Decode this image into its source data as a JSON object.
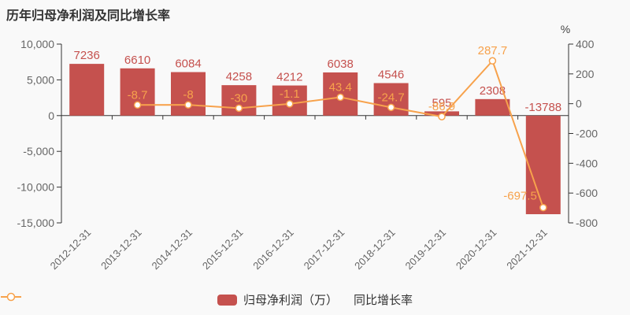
{
  "title": "历年归母净利润及同比增长率",
  "legend": {
    "bar_label": "归母净利润（万）",
    "line_label": "同比增长率"
  },
  "colors": {
    "bar": "#c5514e",
    "line": "#f7a24c",
    "background": "#f9f9f9",
    "axis_line": "#333333",
    "tick_label": "#666666",
    "unit_label": "#444444",
    "title_text": "#333333",
    "marker_fill": "#ffffff"
  },
  "chart_data": {
    "type": "bar+line",
    "title": "历年归母净利润及同比增长率",
    "legend_position": "bottom-center",
    "grid": false,
    "categories": [
      "2012-12-31",
      "2013-12-31",
      "2014-12-31",
      "2015-12-31",
      "2016-12-31",
      "2017-12-31",
      "2018-12-31",
      "2019-12-31",
      "2020-12-31",
      "2021-12-31"
    ],
    "series": [
      {
        "name": "归母净利润（万）",
        "type": "bar",
        "y_axis": "left",
        "color": "#c5514e",
        "values": [
          7236,
          6610,
          6084,
          4258,
          4212,
          6038,
          4546,
          595,
          2308,
          -13788
        ],
        "labels": [
          "7236",
          "6610",
          "6084",
          "4258",
          "4212",
          "6038",
          "4546",
          "595",
          "2308",
          "-13788"
        ]
      },
      {
        "name": "同比增长率",
        "type": "line",
        "y_axis": "right",
        "color": "#f7a24c",
        "values": [
          null,
          -8.7,
          -8,
          -30,
          -1.1,
          43.4,
          -24.7,
          -86.9,
          287.7,
          -697.5
        ],
        "labels": [
          null,
          "-8.7",
          "-8",
          "-30",
          "-1.1",
          "43.4",
          "-24.7",
          "-86.9",
          "287.7",
          "-697.5"
        ]
      }
    ],
    "left_axis": {
      "min": -15000,
      "max": 10000,
      "tick_values": [
        10000,
        5000,
        0,
        -5000,
        -10000,
        -15000
      ],
      "tick_labels": [
        "10,000",
        "5,000",
        "0",
        "-5,000",
        "-10,000",
        "-15,000"
      ]
    },
    "right_axis": {
      "min": -800,
      "max": 400,
      "unit": "%",
      "tick_values": [
        400,
        200,
        0,
        -200,
        -400,
        -600,
        -800
      ],
      "tick_labels": [
        "400",
        "200",
        "0",
        "-200",
        "-400",
        "-600",
        "-800"
      ]
    }
  }
}
